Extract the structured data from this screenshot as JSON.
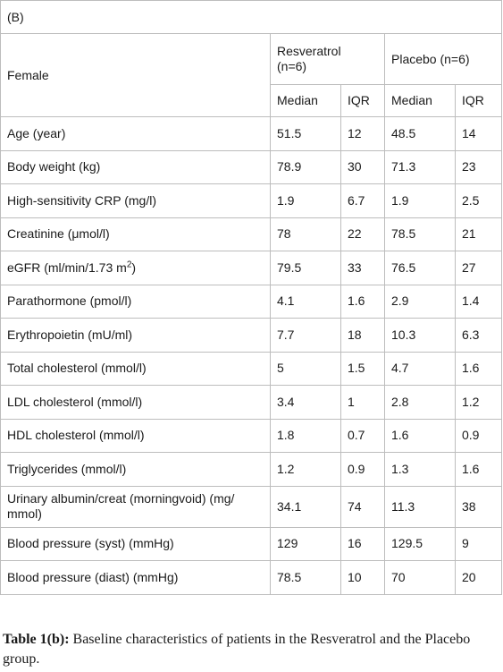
{
  "table": {
    "panel_label": "(B)",
    "group_label": "Female",
    "columns": {
      "resveratrol": "Resveratrol (n=6)",
      "placebo": "Placebo (n=6)",
      "median": "Median",
      "iqr": "IQR"
    },
    "rows": [
      {
        "label": "Age (year)",
        "res_median": "51.5",
        "res_iqr": "12",
        "pla_median": "48.5",
        "pla_iqr": "14"
      },
      {
        "label": "Body weight (kg)",
        "res_median": "78.9",
        "res_iqr": "30",
        "pla_median": "71.3",
        "pla_iqr": "23"
      },
      {
        "label": "High-sensitivity CRP (mg/l)",
        "res_median": "1.9",
        "res_iqr": "6.7",
        "pla_median": "1.9",
        "pla_iqr": "2.5"
      },
      {
        "label": "Creatinine (μmol/l)",
        "res_median": "78",
        "res_iqr": "22",
        "pla_median": "78.5",
        "pla_iqr": "21"
      },
      {
        "label": "eGFR (ml/min/1.73 m",
        "label_sup": "2",
        "label_tail": ")",
        "res_median": "79.5",
        "res_iqr": "33",
        "pla_median": "76.5",
        "pla_iqr": "27"
      },
      {
        "label": "Parathormone (pmol/l)",
        "res_median": "4.1",
        "res_iqr": "1.6",
        "pla_median": "2.9",
        "pla_iqr": "1.4"
      },
      {
        "label": "Erythropoietin (mU/ml)",
        "res_median": "7.7",
        "res_iqr": "18",
        "pla_median": "10.3",
        "pla_iqr": "6.3"
      },
      {
        "label": "Total cholesterol (mmol/l)",
        "res_median": "5",
        "res_iqr": "1.5",
        "pla_median": "4.7",
        "pla_iqr": "1.6"
      },
      {
        "label": "LDL cholesterol (mmol/l)",
        "res_median": "3.4",
        "res_iqr": "1",
        "pla_median": "2.8",
        "pla_iqr": "1.2"
      },
      {
        "label": "HDL cholesterol (mmol/l)",
        "res_median": "1.8",
        "res_iqr": "0.7",
        "pla_median": "1.6",
        "pla_iqr": "0.9"
      },
      {
        "label": "Triglycerides (mmol/l)",
        "res_median": "1.2",
        "res_iqr": "0.9",
        "pla_median": "1.3",
        "pla_iqr": "1.6"
      },
      {
        "label": "Urinary albumin/creat (morningvoid) (mg/ mmol)",
        "res_median": "34.1",
        "res_iqr": "74",
        "pla_median": "11.3",
        "pla_iqr": "38"
      },
      {
        "label": "Blood pressure (syst) (mmHg)",
        "res_median": "129",
        "res_iqr": "16",
        "pla_median": "129.5",
        "pla_iqr": "9"
      },
      {
        "label": "Blood pressure (diast) (mmHg)",
        "res_median": "78.5",
        "res_iqr": "10",
        "pla_median": "70",
        "pla_iqr": "20"
      }
    ]
  },
  "caption": {
    "bold": "Table 1(b):",
    "text": " Baseline characteristics of patients in the Resveratrol and the Placebo group."
  }
}
